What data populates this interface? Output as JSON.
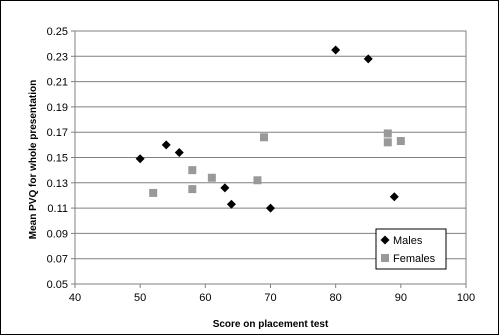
{
  "chart_data": {
    "type": "scatter",
    "title": "",
    "xlabel": "Score on placement test",
    "ylabel": "Mean PVQ for whole presentation",
    "xlim": [
      40,
      100
    ],
    "ylim": [
      0.05,
      0.25
    ],
    "x_ticks": [
      "40",
      "50",
      "60",
      "70",
      "80",
      "90",
      "100"
    ],
    "y_ticks": [
      "0.05",
      "0.07",
      "0.09",
      "0.11",
      "0.13",
      "0.15",
      "0.17",
      "0.19",
      "0.21",
      "0.23",
      "0.25"
    ],
    "grid": "horizontal",
    "legend_position": "bottom-right",
    "series": [
      {
        "name": "Males",
        "marker": "diamond",
        "color": "#000000",
        "points": [
          [
            50,
            0.149
          ],
          [
            54,
            0.16
          ],
          [
            56,
            0.154
          ],
          [
            63,
            0.126
          ],
          [
            64,
            0.113
          ],
          [
            70,
            0.11
          ],
          [
            80,
            0.235
          ],
          [
            85,
            0.228
          ],
          [
            89,
            0.119
          ]
        ]
      },
      {
        "name": "Females",
        "marker": "square",
        "color": "#999999",
        "points": [
          [
            52,
            0.122
          ],
          [
            58,
            0.14
          ],
          [
            58,
            0.125
          ],
          [
            61,
            0.134
          ],
          [
            68,
            0.132
          ],
          [
            69,
            0.166
          ],
          [
            88,
            0.169
          ],
          [
            88,
            0.162
          ],
          [
            90,
            0.163
          ]
        ]
      }
    ]
  }
}
